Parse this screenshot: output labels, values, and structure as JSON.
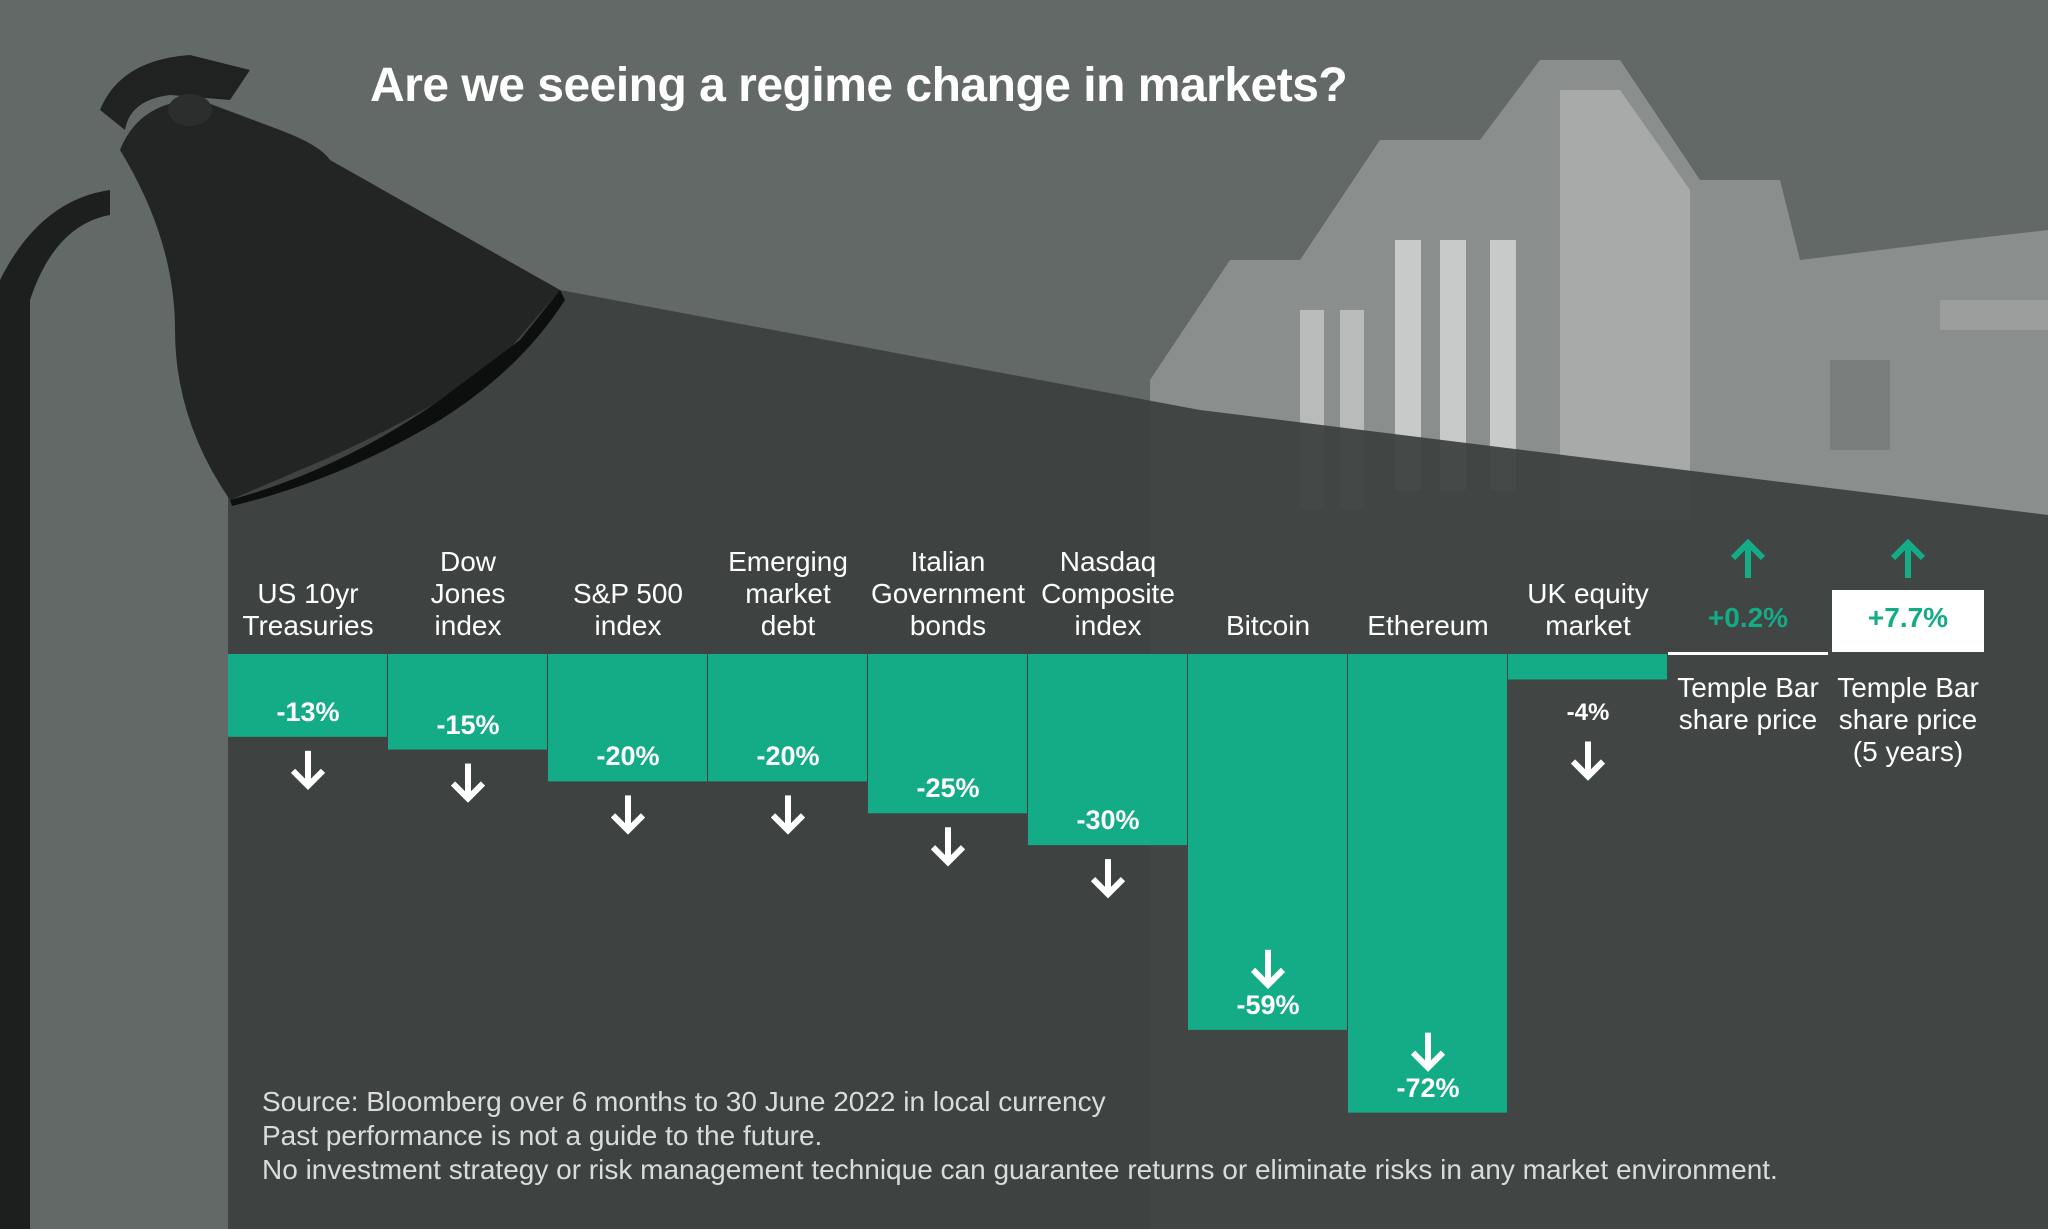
{
  "title": "Are we seeing a regime change in markets?",
  "footer": {
    "line1": "Source: Bloomberg over 6 months to 30 June 2022 in local currency",
    "line2": "Past performance is not a guide to the future.",
    "line3": "No investment strategy or risk management technique can guarantee returns or eliminate risks in any market environment."
  },
  "colors": {
    "background": "#636967",
    "panel": "#3b413f",
    "accent": "#14ab87",
    "text": "#ffffff"
  },
  "chart_data": {
    "type": "bar",
    "title": "Are we seeing a regime change in markets?",
    "unit": "%",
    "categories": [
      [
        "US 10yr",
        "Treasuries"
      ],
      [
        "Dow",
        "Jones",
        "index"
      ],
      [
        "S&P 500",
        "index"
      ],
      [
        "Emerging",
        "market",
        "debt"
      ],
      [
        "Italian",
        "Government",
        "bonds"
      ],
      [
        "Nasdaq",
        "Composite",
        "index"
      ],
      [
        "Bitcoin"
      ],
      [
        "Ethereum"
      ],
      [
        "UK equity",
        "market"
      ],
      [
        "Temple Bar",
        "share price"
      ],
      [
        "Temple Bar",
        "share price",
        "(5 years)"
      ]
    ],
    "values": [
      -13,
      -15,
      -20,
      -20,
      -25,
      -30,
      -59,
      -72,
      -4,
      0.2,
      7.7
    ],
    "value_labels": [
      "-13%",
      "-15%",
      "-20%",
      "-20%",
      "-25%",
      "-30%",
      "-59%",
      "-72%",
      "-4%",
      "+0.2%",
      "+7.7%"
    ],
    "direction_icons": [
      "arrow-down-icon",
      "arrow-down-icon",
      "arrow-down-icon",
      "arrow-down-icon",
      "arrow-down-icon",
      "arrow-down-icon",
      "arrow-down-icon",
      "arrow-down-icon",
      "arrow-down-icon",
      "arrow-up-icon",
      "arrow-up-icon"
    ],
    "xlabel": "",
    "ylabel": ""
  }
}
